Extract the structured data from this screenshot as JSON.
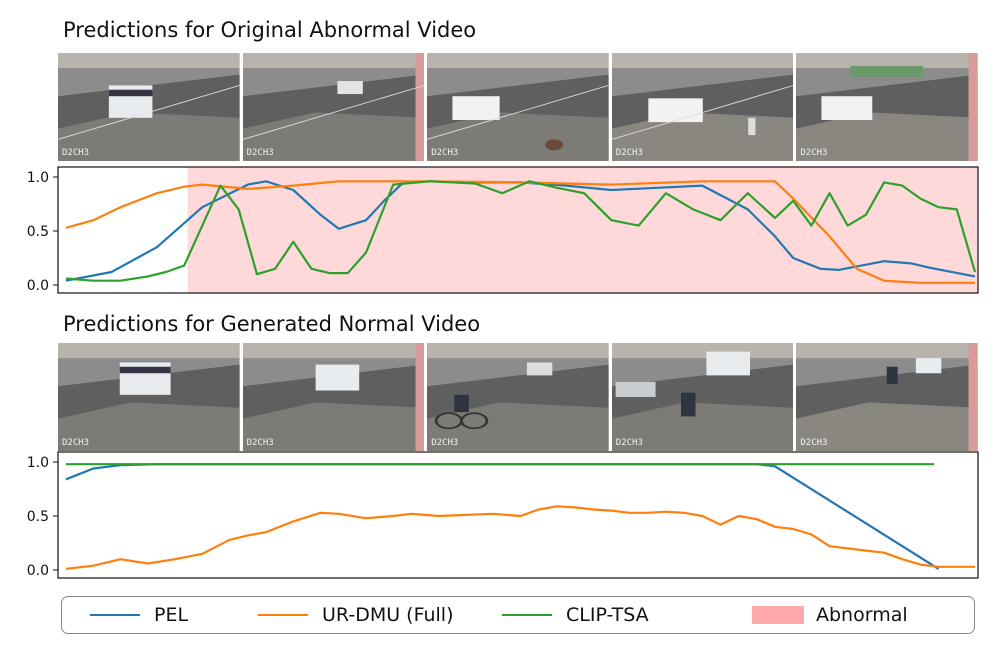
{
  "panels": [
    {
      "title": "Predictions for Original Abnormal Video"
    },
    {
      "title": "Predictions for Generated Normal Video"
    }
  ],
  "frame_caption": "D2CH3",
  "colors": {
    "pel": "#1f77b4",
    "urdmu": "#ff7f0e",
    "cliptsa": "#2ca02c",
    "abnormal": "#ffaaaa"
  },
  "legend": {
    "items": [
      {
        "label": "PEL",
        "type": "line",
        "color": "#1f77b4"
      },
      {
        "label": "UR-DMU (Full)",
        "type": "line",
        "color": "#ff7f0e"
      },
      {
        "label": "CLIP-TSA",
        "type": "line",
        "color": "#2ca02c"
      },
      {
        "label": "Abnormal",
        "type": "patch",
        "color": "#ffaaaa"
      }
    ]
  },
  "chart_data": [
    {
      "type": "line",
      "title": "Predictions for Original Abnormal Video",
      "xlim": [
        0,
        1
      ],
      "ylim": [
        0,
        1
      ],
      "yticks": [
        "0.0",
        "0.5",
        "1.0"
      ],
      "abnormal_region": [
        0.141,
        1.0
      ],
      "series": [
        {
          "name": "PEL",
          "color": "#1f77b4",
          "x": [
            0,
            0.05,
            0.1,
            0.15,
            0.2,
            0.22,
            0.25,
            0.28,
            0.3,
            0.33,
            0.35,
            0.37,
            0.4,
            0.45,
            0.5,
            0.55,
            0.6,
            0.65,
            0.7,
            0.75,
            0.78,
            0.8,
            0.83,
            0.85,
            0.9,
            0.93,
            0.95,
            1.0
          ],
          "y": [
            0.04,
            0.12,
            0.35,
            0.72,
            0.93,
            0.96,
            0.88,
            0.65,
            0.52,
            0.6,
            0.78,
            0.94,
            0.96,
            0.95,
            0.95,
            0.92,
            0.88,
            0.9,
            0.92,
            0.7,
            0.45,
            0.25,
            0.15,
            0.14,
            0.22,
            0.2,
            0.16,
            0.08
          ]
        },
        {
          "name": "UR-DMU (Full)",
          "color": "#ff7f0e",
          "x": [
            0,
            0.03,
            0.06,
            0.1,
            0.13,
            0.15,
            0.2,
            0.25,
            0.3,
            0.4,
            0.5,
            0.6,
            0.7,
            0.78,
            0.8,
            0.84,
            0.87,
            0.9,
            0.94,
            1.0
          ],
          "y": [
            0.53,
            0.6,
            0.72,
            0.85,
            0.91,
            0.93,
            0.89,
            0.92,
            0.96,
            0.96,
            0.95,
            0.93,
            0.96,
            0.96,
            0.8,
            0.45,
            0.15,
            0.04,
            0.02,
            0.02
          ]
        },
        {
          "name": "CLIP-TSA",
          "color": "#2ca02c",
          "x": [
            0,
            0.03,
            0.06,
            0.09,
            0.11,
            0.13,
            0.15,
            0.17,
            0.19,
            0.21,
            0.23,
            0.25,
            0.27,
            0.29,
            0.31,
            0.33,
            0.36,
            0.4,
            0.45,
            0.48,
            0.51,
            0.54,
            0.57,
            0.6,
            0.63,
            0.66,
            0.69,
            0.72,
            0.75,
            0.78,
            0.8,
            0.82,
            0.84,
            0.86,
            0.88,
            0.9,
            0.92,
            0.94,
            0.96,
            0.98,
            1.0
          ],
          "y": [
            0.06,
            0.04,
            0.04,
            0.08,
            0.12,
            0.18,
            0.55,
            0.92,
            0.7,
            0.1,
            0.15,
            0.4,
            0.15,
            0.11,
            0.11,
            0.3,
            0.93,
            0.96,
            0.94,
            0.85,
            0.96,
            0.9,
            0.85,
            0.6,
            0.55,
            0.85,
            0.7,
            0.6,
            0.85,
            0.62,
            0.78,
            0.55,
            0.85,
            0.55,
            0.65,
            0.95,
            0.92,
            0.8,
            0.72,
            0.7,
            0.12
          ]
        }
      ]
    },
    {
      "type": "line",
      "title": "Predictions for Generated Normal Video",
      "xlim": [
        0,
        1
      ],
      "ylim": [
        0,
        1
      ],
      "yticks": [
        "0.0",
        "0.5",
        "1.0"
      ],
      "series": [
        {
          "name": "PEL",
          "color": "#1f77b4",
          "x": [
            0,
            0.03,
            0.06,
            0.1,
            0.2,
            0.4,
            0.6,
            0.76,
            0.78,
            0.96
          ],
          "y": [
            0.84,
            0.94,
            0.97,
            0.98,
            0.98,
            0.98,
            0.98,
            0.98,
            0.96,
            0.01
          ]
        },
        {
          "name": "UR-DMU (Full)",
          "color": "#ff7f0e",
          "x": [
            0,
            0.03,
            0.06,
            0.09,
            0.12,
            0.15,
            0.18,
            0.2,
            0.22,
            0.25,
            0.28,
            0.3,
            0.33,
            0.36,
            0.38,
            0.41,
            0.44,
            0.47,
            0.5,
            0.52,
            0.54,
            0.56,
            0.58,
            0.6,
            0.62,
            0.64,
            0.66,
            0.68,
            0.7,
            0.72,
            0.74,
            0.76,
            0.78,
            0.8,
            0.82,
            0.84,
            0.86,
            0.88,
            0.9,
            0.92,
            0.94,
            0.96,
            1.0
          ],
          "y": [
            0.01,
            0.04,
            0.1,
            0.06,
            0.1,
            0.15,
            0.28,
            0.32,
            0.35,
            0.45,
            0.53,
            0.52,
            0.48,
            0.5,
            0.52,
            0.5,
            0.51,
            0.52,
            0.5,
            0.56,
            0.59,
            0.58,
            0.56,
            0.55,
            0.53,
            0.53,
            0.54,
            0.53,
            0.5,
            0.42,
            0.5,
            0.47,
            0.4,
            0.38,
            0.33,
            0.22,
            0.2,
            0.18,
            0.16,
            0.1,
            0.05,
            0.03,
            0.03
          ]
        },
        {
          "name": "CLIP-TSA",
          "color": "#2ca02c",
          "x": [
            0,
            0.2,
            0.4,
            0.6,
            0.8,
            0.955
          ],
          "y": [
            0.98,
            0.98,
            0.98,
            0.98,
            0.98,
            0.98
          ]
        }
      ]
    }
  ]
}
